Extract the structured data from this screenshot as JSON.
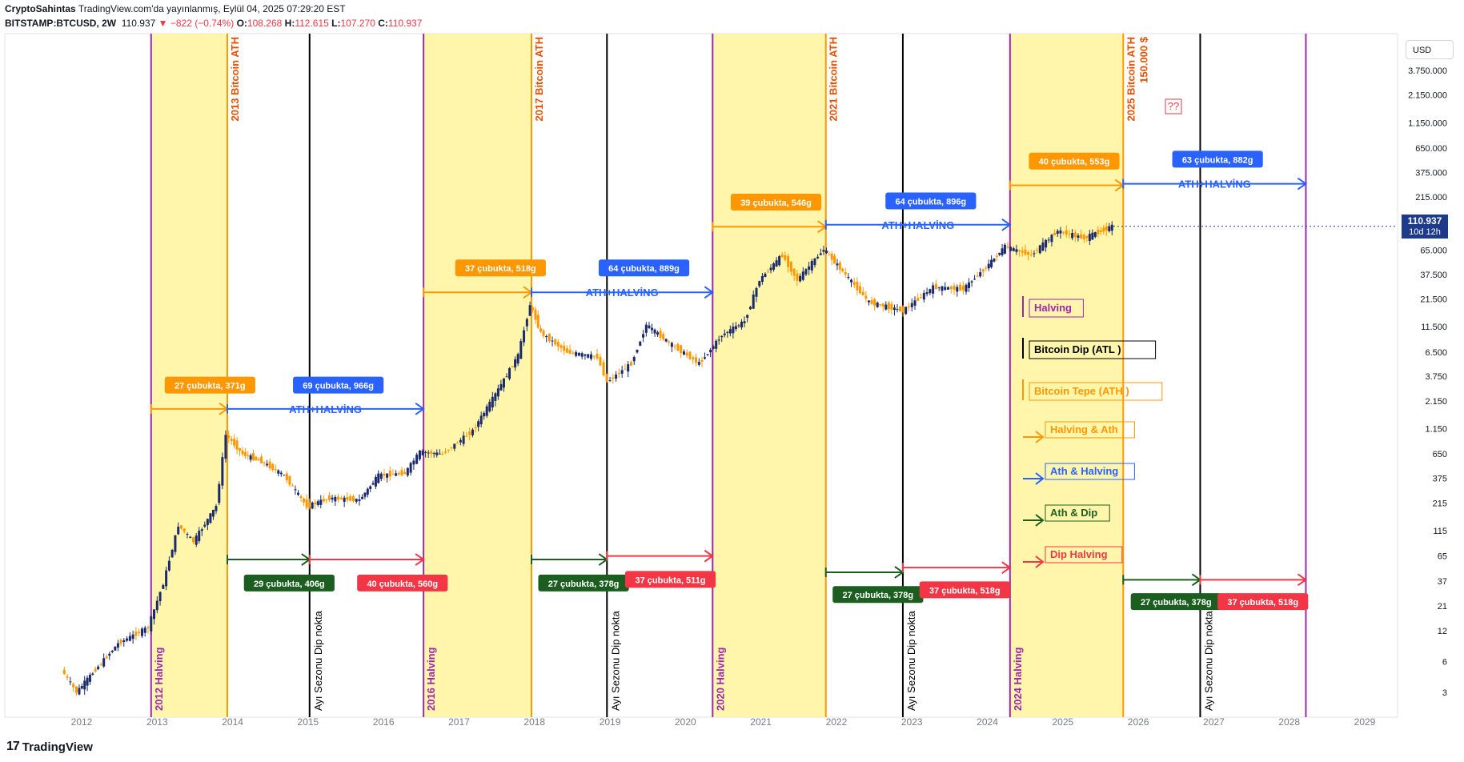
{
  "header": {
    "author": "CryptoSahintas",
    "published": "TradingView.com'da yayınlanmış, Eylül 04, 2025 07:29:20 EST",
    "symbol": "BITSTAMP:BTCUSD, 2W",
    "last": "110.937",
    "change": "▼ −822 (−0.74%)",
    "o_label": "O:",
    "o": "108.268",
    "h_label": "H:",
    "h": "112.615",
    "l_label": "L:",
    "l": "107.270",
    "c_label": "C:",
    "c": "110.937"
  },
  "currency": "USD",
  "price_tag": {
    "value": "110.937",
    "countdown": "10d 12h"
  },
  "branding": "TradingView",
  "chart_data": {
    "type": "candlestick",
    "x_ticks": [
      "2012",
      "2013",
      "2014",
      "2015",
      "2016",
      "2017",
      "2018",
      "2019",
      "2020",
      "2021",
      "2022",
      "2023",
      "2024",
      "2025",
      "2026",
      "2027",
      "2028",
      "2029"
    ],
    "y_ticks": [
      "3.750.000",
      "2.150.000",
      "1.150.000",
      "650.000",
      "375.000",
      "215.000",
      "110.937",
      "65.000",
      "37.500",
      "21.500",
      "11.500",
      "6.500",
      "3.750",
      "2.150",
      "1.150",
      "650",
      "375",
      "215",
      "115",
      "65",
      "37",
      "21",
      "12",
      "6",
      "3"
    ],
    "y_scale": "log",
    "series_price_path": [
      {
        "t": 2011.75,
        "v": 5
      },
      {
        "t": 2011.95,
        "v": 3
      },
      {
        "t": 2012.2,
        "v": 5
      },
      {
        "t": 2012.5,
        "v": 9
      },
      {
        "t": 2012.9,
        "v": 13
      },
      {
        "t": 2013.1,
        "v": 35
      },
      {
        "t": 2013.3,
        "v": 130
      },
      {
        "t": 2013.5,
        "v": 90
      },
      {
        "t": 2013.8,
        "v": 200
      },
      {
        "t": 2013.93,
        "v": 1000
      },
      {
        "t": 2014.15,
        "v": 650
      },
      {
        "t": 2014.4,
        "v": 550
      },
      {
        "t": 2014.7,
        "v": 400
      },
      {
        "t": 2015.0,
        "v": 200
      },
      {
        "t": 2015.3,
        "v": 240
      },
      {
        "t": 2015.7,
        "v": 230
      },
      {
        "t": 2015.95,
        "v": 400
      },
      {
        "t": 2016.3,
        "v": 420
      },
      {
        "t": 2016.5,
        "v": 680
      },
      {
        "t": 2016.8,
        "v": 650
      },
      {
        "t": 2017.2,
        "v": 1100
      },
      {
        "t": 2017.5,
        "v": 2500
      },
      {
        "t": 2017.8,
        "v": 6000
      },
      {
        "t": 2017.96,
        "v": 19000
      },
      {
        "t": 2018.1,
        "v": 10000
      },
      {
        "t": 2018.45,
        "v": 6500
      },
      {
        "t": 2018.85,
        "v": 5800
      },
      {
        "t": 2018.98,
        "v": 3300
      },
      {
        "t": 2019.3,
        "v": 5000
      },
      {
        "t": 2019.5,
        "v": 12000
      },
      {
        "t": 2019.8,
        "v": 8000
      },
      {
        "t": 2020.2,
        "v": 5000
      },
      {
        "t": 2020.5,
        "v": 9500
      },
      {
        "t": 2020.8,
        "v": 13000
      },
      {
        "t": 2021.0,
        "v": 33000
      },
      {
        "t": 2021.3,
        "v": 58000
      },
      {
        "t": 2021.5,
        "v": 33000
      },
      {
        "t": 2021.85,
        "v": 66000
      },
      {
        "t": 2022.1,
        "v": 40000
      },
      {
        "t": 2022.45,
        "v": 20000
      },
      {
        "t": 2022.9,
        "v": 16500
      },
      {
        "t": 2023.3,
        "v": 28000
      },
      {
        "t": 2023.7,
        "v": 27000
      },
      {
        "t": 2024.0,
        "v": 44000
      },
      {
        "t": 2024.25,
        "v": 70000
      },
      {
        "t": 2024.6,
        "v": 58000
      },
      {
        "t": 2024.95,
        "v": 100000
      },
      {
        "t": 2025.3,
        "v": 85000
      },
      {
        "t": 2025.67,
        "v": 110937
      }
    ],
    "verticals": [
      {
        "kind": "halving",
        "t": 2012.92,
        "label": "2012 Halving"
      },
      {
        "kind": "ath",
        "t": 2013.93,
        "label": "2013 Bitcoin ATH"
      },
      {
        "kind": "dip",
        "t": 2015.02,
        "label": "Ayı Sezonu Dip nokta"
      },
      {
        "kind": "halving",
        "t": 2016.53,
        "label": "2016 Halving"
      },
      {
        "kind": "ath",
        "t": 2017.96,
        "label": "2017 Bitcoin ATH"
      },
      {
        "kind": "dip",
        "t": 2018.96,
        "label": "Ayı Sezonu Dip nokta"
      },
      {
        "kind": "halving",
        "t": 2020.36,
        "label": "2020 Halving"
      },
      {
        "kind": "ath",
        "t": 2021.86,
        "label": "2021 Bitcoin ATH"
      },
      {
        "kind": "dip",
        "t": 2022.88,
        "label": "Ayı Sezonu Dip nokta"
      },
      {
        "kind": "halving",
        "t": 2024.3,
        "label": "2024 Halving"
      },
      {
        "kind": "ath",
        "t": 2025.8,
        "label": "2025 Bitcoin ATH"
      },
      {
        "kind": "ath_sub",
        "t": 2025.95,
        "label": "150.000 $"
      },
      {
        "kind": "dip",
        "t": 2026.82,
        "label": "Ayı Sezonu Dip nokta"
      },
      {
        "kind": "halving",
        "t": 2028.22,
        "label": ""
      }
    ],
    "yellow_zones": [
      [
        2012.92,
        2013.93
      ],
      [
        2016.53,
        2017.96
      ],
      [
        2020.36,
        2021.86
      ],
      [
        2024.3,
        2025.8
      ]
    ],
    "arrows": [
      {
        "kind": "halving_ath",
        "t1": 2012.92,
        "t2": 2013.93,
        "v": 1800,
        "label": "27 çubukta, 371g",
        "label_t": 2013.1,
        "label_v": 3050
      },
      {
        "kind": "ath_halving",
        "t1": 2013.93,
        "t2": 2016.53,
        "v": 1800,
        "label": "69 çubukta, 966g",
        "label_t": 2014.8,
        "label_v": 3050,
        "text": "ATH+HALVİNG"
      },
      {
        "kind": "ath_dip",
        "t1": 2013.93,
        "t2": 2015.02,
        "v": 60,
        "label": "29 çubukta, 406g",
        "label_t": 2014.15,
        "label_v": 35
      },
      {
        "kind": "dip_halving",
        "t1": 2015.02,
        "t2": 2016.53,
        "v": 60,
        "label": "40 çubukta, 560g",
        "label_t": 2015.65,
        "label_v": 35
      },
      {
        "kind": "halving_ath",
        "t1": 2016.53,
        "t2": 2017.96,
        "v": 25000,
        "label": "37 çubukta, 518g",
        "label_t": 2016.95,
        "label_v": 43000
      },
      {
        "kind": "ath_halving",
        "t1": 2017.96,
        "t2": 2020.36,
        "v": 25000,
        "label": "64 çubukta, 889g",
        "label_t": 2018.85,
        "label_v": 43000,
        "text": "ATH+HALVİNG"
      },
      {
        "kind": "ath_dip",
        "t1": 2017.96,
        "t2": 2018.96,
        "v": 60,
        "label": "27 çubukta, 378g",
        "label_t": 2018.05,
        "label_v": 35
      },
      {
        "kind": "dip_halving",
        "t1": 2018.96,
        "t2": 2020.36,
        "v": 65,
        "label": "37 çubukta, 511g",
        "label_t": 2019.2,
        "label_v": 38
      },
      {
        "kind": "halving_ath",
        "t1": 2020.36,
        "t2": 2021.86,
        "v": 110000,
        "label": "39 çubukta, 546g",
        "label_t": 2020.6,
        "label_v": 190000
      },
      {
        "kind": "ath_halving",
        "t1": 2021.86,
        "t2": 2024.3,
        "v": 115000,
        "label": "64 çubukta, 896g",
        "label_t": 2022.65,
        "label_v": 195000,
        "text": "ATH+HALVİNG"
      },
      {
        "kind": "ath_dip",
        "t1": 2021.86,
        "t2": 2022.88,
        "v": 45,
        "label": "27 çubukta, 378g",
        "label_t": 2021.95,
        "label_v": 27
      },
      {
        "kind": "dip_halving",
        "t1": 2022.88,
        "t2": 2024.3,
        "v": 50,
        "label": "37 çubukta, 518g",
        "label_t": 2023.1,
        "label_v": 30
      },
      {
        "kind": "halving_ath",
        "t1": 2024.3,
        "t2": 2025.8,
        "v": 280000,
        "label": "40 çubukta, 553g",
        "label_t": 2024.55,
        "label_v": 480000
      },
      {
        "kind": "ath_halving",
        "t1": 2025.8,
        "t2": 2028.22,
        "v": 290000,
        "label": "63 çubukta, 882g",
        "label_t": 2026.45,
        "label_v": 500000,
        "text": "ATH+HALVİNG"
      },
      {
        "kind": "ath_dip",
        "t1": 2025.8,
        "t2": 2026.82,
        "v": 38,
        "label": "27 çubukta, 378g",
        "label_t": 2025.9,
        "label_v": 23
      },
      {
        "kind": "dip_halving",
        "t1": 2026.82,
        "t2": 2028.22,
        "v": 38,
        "label": "37 çubukta, 518g",
        "label_t": 2027.05,
        "label_v": 23
      }
    ],
    "question_mark": "??",
    "legend": [
      {
        "kind": "halving",
        "label": "Halving"
      },
      {
        "kind": "dip",
        "label": "Bitcoin Dip (ATL )"
      },
      {
        "kind": "ath",
        "label": "Bitcoin Tepe (ATH )"
      },
      {
        "kind": "halving_ath",
        "label": "Halving & Ath"
      },
      {
        "kind": "ath_halving",
        "label": "Ath & Halving"
      },
      {
        "kind": "ath_dip",
        "label": "Ath & Dip"
      },
      {
        "kind": "dip_halving",
        "label": "Dip Halving"
      }
    ],
    "colors": {
      "halving": "#9c27b0",
      "ath": "#ff9800",
      "dip": "#000000",
      "zone": "#fff59d",
      "halving_ath": "#ff9800",
      "ath_halving": "#2962ff",
      "ath_dip": "#1b5e20",
      "dip_halving": "#f23645",
      "ath_text": "#e65100",
      "candle_up": "#1a2a6c",
      "candle_down": "#ff9800"
    }
  }
}
